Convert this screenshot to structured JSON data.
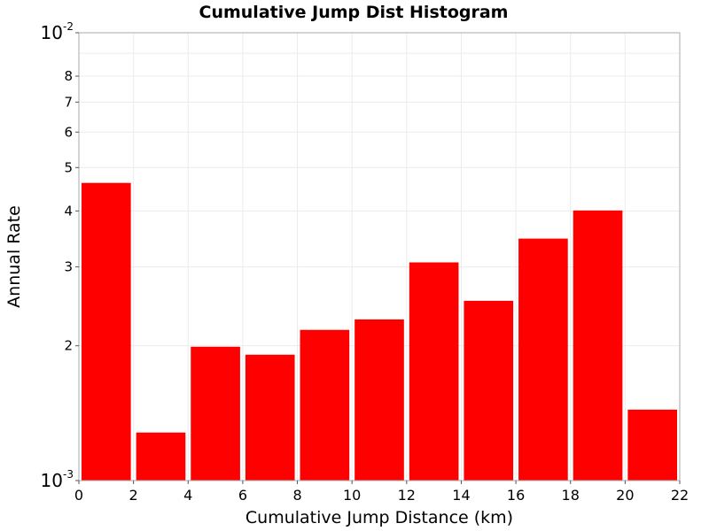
{
  "chart_data": {
    "type": "bar",
    "title": "Cumulative Jump Dist Histogram",
    "xlabel": "Cumulative Jump Distance (km)",
    "ylabel": "Annual Rate",
    "xlim": [
      0,
      22
    ],
    "ylim": [
      0.001,
      0.01
    ],
    "y_scale": "log",
    "grid": true,
    "bar_color": "#ff0000",
    "x_ticks": [
      "0",
      "2",
      "4",
      "6",
      "8",
      "10",
      "12",
      "14",
      "16",
      "18",
      "20",
      "22"
    ],
    "y_ticks_minor": [
      "2",
      "3",
      "4",
      "5",
      "6",
      "7",
      "8"
    ],
    "y_ticks_major": [
      {
        "base": "10",
        "exp": "-3"
      },
      {
        "base": "10",
        "exp": "-2"
      }
    ],
    "bins": [
      {
        "x0": 0,
        "x1": 2,
        "value": 0.00462
      },
      {
        "x0": 2,
        "x1": 4,
        "value": 0.00128
      },
      {
        "x0": 4,
        "x1": 6,
        "value": 0.00199
      },
      {
        "x0": 6,
        "x1": 8,
        "value": 0.00191
      },
      {
        "x0": 8,
        "x1": 10,
        "value": 0.00217
      },
      {
        "x0": 10,
        "x1": 12,
        "value": 0.00229
      },
      {
        "x0": 12,
        "x1": 14,
        "value": 0.00307
      },
      {
        "x0": 14,
        "x1": 16,
        "value": 0.00252
      },
      {
        "x0": 16,
        "x1": 18,
        "value": 0.00347
      },
      {
        "x0": 18,
        "x1": 20,
        "value": 0.00401
      },
      {
        "x0": 20,
        "x1": 22,
        "value": 0.00144
      }
    ]
  }
}
